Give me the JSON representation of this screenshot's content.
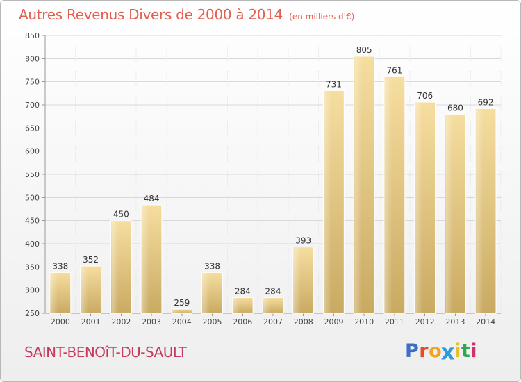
{
  "chart_data": {
    "type": "bar",
    "title": "Autres Revenus Divers de 2000 à 2014",
    "unit": "(en milliers d'€)",
    "categories": [
      "2000",
      "2001",
      "2002",
      "2003",
      "2004",
      "2005",
      "2006",
      "2007",
      "2008",
      "2009",
      "2010",
      "2011",
      "2012",
      "2013",
      "2014"
    ],
    "values": [
      338,
      352,
      450,
      484,
      259,
      338,
      284,
      284,
      393,
      731,
      805,
      761,
      706,
      680,
      692
    ],
    "ylim": [
      250,
      850
    ],
    "yticks": [
      250,
      300,
      350,
      400,
      450,
      500,
      550,
      600,
      650,
      700,
      750,
      800,
      850
    ],
    "grid": true,
    "bar_color": "#e7c679",
    "xlabel": "",
    "ylabel": ""
  },
  "commune": "SAINT-BENOîT-DU-SAULT",
  "logo": {
    "text": "Proxiti",
    "letter_colors": [
      "#3a6fc4",
      "#e84a2a",
      "#f2a21e",
      "#2e9bd6",
      "#e8c12a",
      "#2fa84f",
      "#d2306b"
    ]
  }
}
